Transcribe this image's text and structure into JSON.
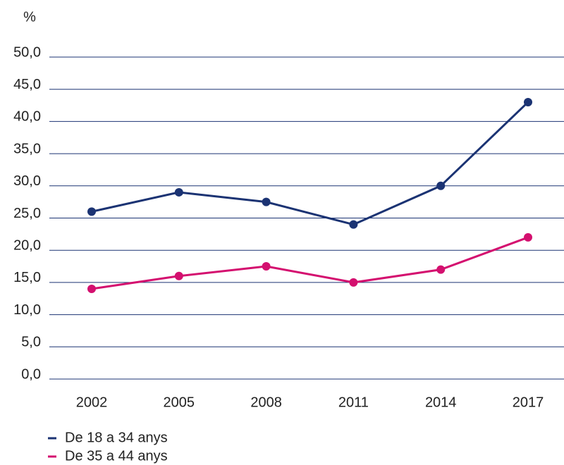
{
  "chart_data": {
    "type": "line",
    "y_label": "%",
    "categories": [
      "2002",
      "2005",
      "2008",
      "2011",
      "2014",
      "2017"
    ],
    "series": [
      {
        "name": "De 18 a 34 anys",
        "color": "#1b3373",
        "values": [
          26,
          29,
          27.5,
          24,
          30,
          43
        ]
      },
      {
        "name": "De 35 a 44 anys",
        "color": "#d4106f",
        "values": [
          14,
          16,
          17.5,
          15,
          17,
          22
        ]
      }
    ],
    "ylim": [
      0,
      50
    ],
    "yticks": [
      {
        "value": 0,
        "label": "0,0"
      },
      {
        "value": 5,
        "label": "5,0"
      },
      {
        "value": 10,
        "label": "10,0"
      },
      {
        "value": 15,
        "label": "15,0"
      },
      {
        "value": 20,
        "label": "20,0"
      },
      {
        "value": 25,
        "label": "25,0"
      },
      {
        "value": 30,
        "label": "30,0"
      },
      {
        "value": 35,
        "label": "35,0"
      },
      {
        "value": 40,
        "label": "40,0"
      },
      {
        "value": 45,
        "label": "45,0"
      },
      {
        "value": 50,
        "label": "50,0"
      }
    ],
    "grid": true
  }
}
